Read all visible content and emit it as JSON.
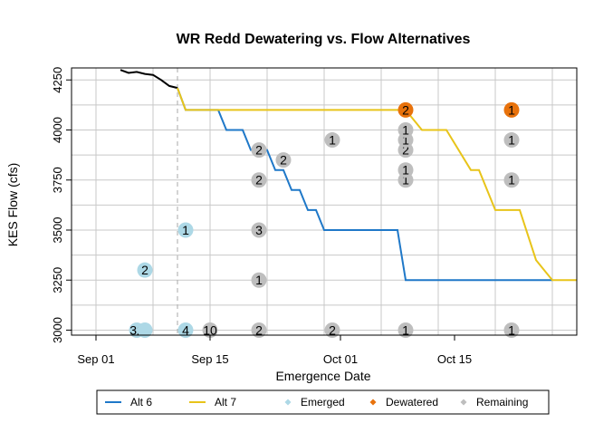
{
  "chart_data": {
    "type": "line",
    "title": "WR Redd Dewatering vs. Flow Alternatives",
    "xlabel": "Emergence Date",
    "ylabel": "KES Flow (cfs)",
    "xlim": [
      "2024-08-29",
      "2024-10-30"
    ],
    "ylim": [
      2975,
      4310
    ],
    "x_ticks": [
      {
        "date": "2024-09-01",
        "label": "Sep 01"
      },
      {
        "date": "2024-09-15",
        "label": "Sep 15"
      },
      {
        "date": "2024-10-01",
        "label": "Oct 01"
      },
      {
        "date": "2024-10-15",
        "label": "Oct 15"
      }
    ],
    "y_ticks": [
      3000,
      3250,
      3500,
      3750,
      4000,
      4250
    ],
    "grid": true,
    "vertical_dashed_line": "2024-09-11",
    "observed_flow": {
      "color": "#000000",
      "points": [
        [
          "2024-09-04",
          4300
        ],
        [
          "2024-09-05",
          4285
        ],
        [
          "2024-09-06",
          4290
        ],
        [
          "2024-09-07",
          4280
        ],
        [
          "2024-09-08",
          4275
        ],
        [
          "2024-09-09",
          4250
        ],
        [
          "2024-09-10",
          4220
        ],
        [
          "2024-09-11",
          4210
        ]
      ]
    },
    "series": [
      {
        "name": "Alt 6",
        "color": "#1f78c8",
        "points": [
          [
            "2024-09-11",
            4210
          ],
          [
            "2024-09-12",
            4100
          ],
          [
            "2024-09-16",
            4100
          ],
          [
            "2024-09-17",
            4000
          ],
          [
            "2024-09-19",
            4000
          ],
          [
            "2024-09-20",
            3900
          ],
          [
            "2024-09-22",
            3900
          ],
          [
            "2024-09-23",
            3800
          ],
          [
            "2024-09-24",
            3800
          ],
          [
            "2024-09-25",
            3700
          ],
          [
            "2024-09-26",
            3700
          ],
          [
            "2024-09-27",
            3600
          ],
          [
            "2024-09-28",
            3600
          ],
          [
            "2024-09-29",
            3500
          ],
          [
            "2024-10-08",
            3500
          ],
          [
            "2024-10-09",
            3250
          ],
          [
            "2024-10-27",
            3250
          ]
        ]
      },
      {
        "name": "Alt 7",
        "color": "#e8c41a",
        "points": [
          [
            "2024-09-11",
            4210
          ],
          [
            "2024-09-12",
            4100
          ],
          [
            "2024-10-09",
            4100
          ],
          [
            "2024-10-11",
            4000
          ],
          [
            "2024-10-14",
            4000
          ],
          [
            "2024-10-17",
            3800
          ],
          [
            "2024-10-18",
            3800
          ],
          [
            "2024-10-20",
            3600
          ],
          [
            "2024-10-23",
            3600
          ],
          [
            "2024-10-25",
            3350
          ],
          [
            "2024-10-26",
            3300
          ],
          [
            "2024-10-27",
            3250
          ],
          [
            "2024-10-30",
            3250
          ]
        ]
      }
    ],
    "point_categories": [
      {
        "name": "Emerged",
        "color": "#add8e6"
      },
      {
        "name": "Dewatered",
        "color": "#e8720c"
      },
      {
        "name": "Remaining",
        "color": "#bebebe"
      }
    ],
    "points": [
      {
        "date": "2024-09-06",
        "flow": 3000,
        "label": "32",
        "category": "Emerged"
      },
      {
        "date": "2024-09-07",
        "flow": 3000,
        "label": "",
        "category": "Emerged"
      },
      {
        "date": "2024-09-07",
        "flow": 3300,
        "label": "2",
        "category": "Emerged"
      },
      {
        "date": "2024-09-12",
        "flow": 3000,
        "label": "4",
        "category": "Emerged"
      },
      {
        "date": "2024-09-12",
        "flow": 3500,
        "label": "1",
        "category": "Emerged"
      },
      {
        "date": "2024-09-15",
        "flow": 3000,
        "label": "10",
        "category": "Remaining"
      },
      {
        "date": "2024-09-21",
        "flow": 3000,
        "label": "2",
        "category": "Remaining"
      },
      {
        "date": "2024-09-21",
        "flow": 3250,
        "label": "1",
        "category": "Remaining"
      },
      {
        "date": "2024-09-21",
        "flow": 3500,
        "label": "3",
        "category": "Remaining"
      },
      {
        "date": "2024-09-21",
        "flow": 3750,
        "label": "2",
        "category": "Remaining"
      },
      {
        "date": "2024-09-21",
        "flow": 3900,
        "label": "2",
        "category": "Remaining"
      },
      {
        "date": "2024-09-24",
        "flow": 3850,
        "label": "2",
        "category": "Remaining"
      },
      {
        "date": "2024-09-30",
        "flow": 3000,
        "label": "2",
        "category": "Remaining"
      },
      {
        "date": "2024-09-30",
        "flow": 3950,
        "label": "1",
        "category": "Remaining"
      },
      {
        "date": "2024-10-09",
        "flow": 3000,
        "label": "1",
        "category": "Remaining"
      },
      {
        "date": "2024-10-09",
        "flow": 3750,
        "label": "1",
        "category": "Remaining"
      },
      {
        "date": "2024-10-09",
        "flow": 3800,
        "label": "1",
        "category": "Remaining"
      },
      {
        "date": "2024-10-09",
        "flow": 3900,
        "label": "2",
        "category": "Remaining"
      },
      {
        "date": "2024-10-09",
        "flow": 3950,
        "label": "1",
        "category": "Remaining"
      },
      {
        "date": "2024-10-09",
        "flow": 4000,
        "label": "1",
        "category": "Remaining"
      },
      {
        "date": "2024-10-09",
        "flow": 4100,
        "label": "2",
        "category": "Dewatered"
      },
      {
        "date": "2024-10-22",
        "flow": 3000,
        "label": "1",
        "category": "Remaining"
      },
      {
        "date": "2024-10-22",
        "flow": 3750,
        "label": "1",
        "category": "Remaining"
      },
      {
        "date": "2024-10-22",
        "flow": 3950,
        "label": "1",
        "category": "Remaining"
      },
      {
        "date": "2024-10-22",
        "flow": 4100,
        "label": "1",
        "category": "Dewatered"
      }
    ],
    "legend": {
      "placement": "bottom",
      "entries": [
        {
          "label": "Alt 6",
          "kind": "line",
          "color": "#1f78c8"
        },
        {
          "label": "Alt 7",
          "kind": "line",
          "color": "#e8c41a"
        },
        {
          "label": "Emerged",
          "kind": "point",
          "color": "#add8e6"
        },
        {
          "label": "Dewatered",
          "kind": "point",
          "color": "#e8720c"
        },
        {
          "label": "Remaining",
          "kind": "point",
          "color": "#bebebe"
        }
      ]
    }
  }
}
